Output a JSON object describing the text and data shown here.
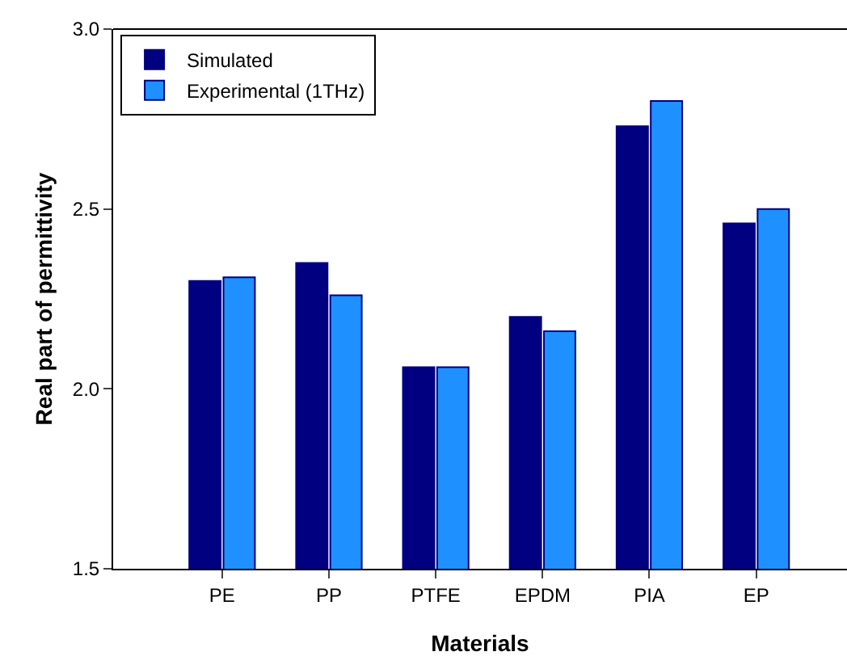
{
  "chart_data": {
    "type": "bar",
    "xlabel": "Materials",
    "ylabel": "Real part of permittivity",
    "categories": [
      "PE",
      "PP",
      "PTFE",
      "EPDM",
      "PIA",
      "EP"
    ],
    "series": [
      {
        "name": "Simulated",
        "color": "#000080",
        "values": [
          2.3,
          2.35,
          2.06,
          2.2,
          2.73,
          2.46
        ]
      },
      {
        "name": "Experimental (1THz)",
        "color": "#1e90ff",
        "values": [
          2.31,
          2.26,
          2.06,
          2.16,
          2.8,
          2.5
        ]
      }
    ],
    "ylim": [
      1.5,
      3.0
    ],
    "yticks": [
      {
        "value": 1.5,
        "label": "1.5"
      },
      {
        "value": 2.0,
        "label": "2.0"
      },
      {
        "value": 2.5,
        "label": "2.5"
      },
      {
        "value": 3.0,
        "label": "3.0"
      }
    ],
    "grid": false,
    "legend": "top left"
  }
}
